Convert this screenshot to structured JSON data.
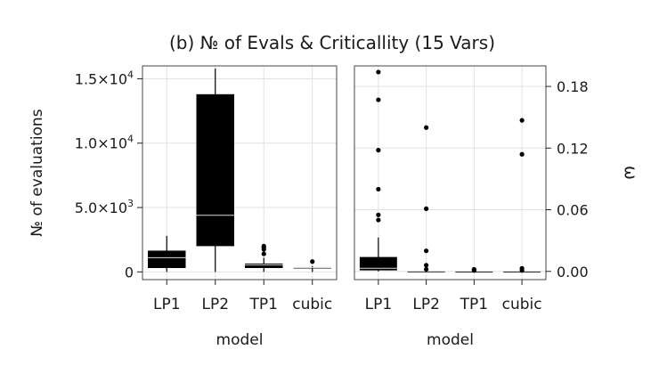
{
  "chart_data": {
    "title": "(b) № of Evals & Criticallity (15 Vars)",
    "panels": [
      {
        "type": "box",
        "xlabel": "model",
        "ylabel": "№ of evaluations",
        "categories": [
          "LP1",
          "LP2",
          "TP1",
          "cubic"
        ],
        "ylim": [
          -600,
          16000
        ],
        "yticks": [
          {
            "value": 0,
            "base": "0",
            "exp": ""
          },
          {
            "value": 5000,
            "base": "5.0×10",
            "exp": "3"
          },
          {
            "value": 10000,
            "base": "1.0×10",
            "exp": "4"
          },
          {
            "value": 15000,
            "base": "1.5×10",
            "exp": "4"
          }
        ],
        "boxes": [
          {
            "category": "LP1",
            "q1": 300,
            "median": 1100,
            "q3": 1650,
            "whisker_low": 0,
            "whisker_high": 2800,
            "outliers": []
          },
          {
            "category": "LP2",
            "q1": 2000,
            "median": 4400,
            "q3": 13800,
            "whisker_low": 0,
            "whisker_high": 15800,
            "outliers": []
          },
          {
            "category": "TP1",
            "q1": 300,
            "median": 550,
            "q3": 650,
            "whisker_low": 0,
            "whisker_high": 1100,
            "outliers": [
              1400,
              1750,
              1900,
              2000
            ]
          },
          {
            "category": "cubic",
            "q1": 270,
            "median": 330,
            "q3": 370,
            "whisker_low": 0,
            "whisker_high": 450,
            "outliers": [
              800
            ]
          }
        ]
      },
      {
        "type": "box",
        "xlabel": "model",
        "ylabel": "ω",
        "y_axis_side": "right",
        "categories": [
          "LP1",
          "LP2",
          "TP1",
          "cubic"
        ],
        "ylim": [
          -0.008,
          0.2
        ],
        "yticks": [
          {
            "value": 0,
            "base": "0.00",
            "exp": ""
          },
          {
            "value": 0.06,
            "base": "0.06",
            "exp": ""
          },
          {
            "value": 0.12,
            "base": "0.12",
            "exp": ""
          },
          {
            "value": 0.18,
            "base": "0.18",
            "exp": ""
          }
        ],
        "boxes": [
          {
            "category": "LP1",
            "q1": 0.001,
            "median": 0.003,
            "q3": 0.014,
            "whisker_low": 0,
            "whisker_high": 0.033,
            "outliers": [
              0.05,
              0.055,
              0.08,
              0.118,
              0.167,
              0.194
            ]
          },
          {
            "category": "LP2",
            "q1": 0,
            "median": 0,
            "q3": 0.0003,
            "whisker_low": 0,
            "whisker_high": 0.0008,
            "outliers": [
              0.002,
              0.006,
              0.02,
              0.061,
              0.14
            ]
          },
          {
            "category": "TP1",
            "q1": 0,
            "median": 0,
            "q3": 0.0002,
            "whisker_low": 0,
            "whisker_high": 0.0004,
            "outliers": [
              0.001,
              0.002
            ]
          },
          {
            "category": "cubic",
            "q1": 0,
            "median": 0,
            "q3": 0.0002,
            "whisker_low": 0,
            "whisker_high": 0.0004,
            "outliers": [
              0.001,
              0.003,
              0.114,
              0.147
            ]
          }
        ]
      }
    ]
  }
}
